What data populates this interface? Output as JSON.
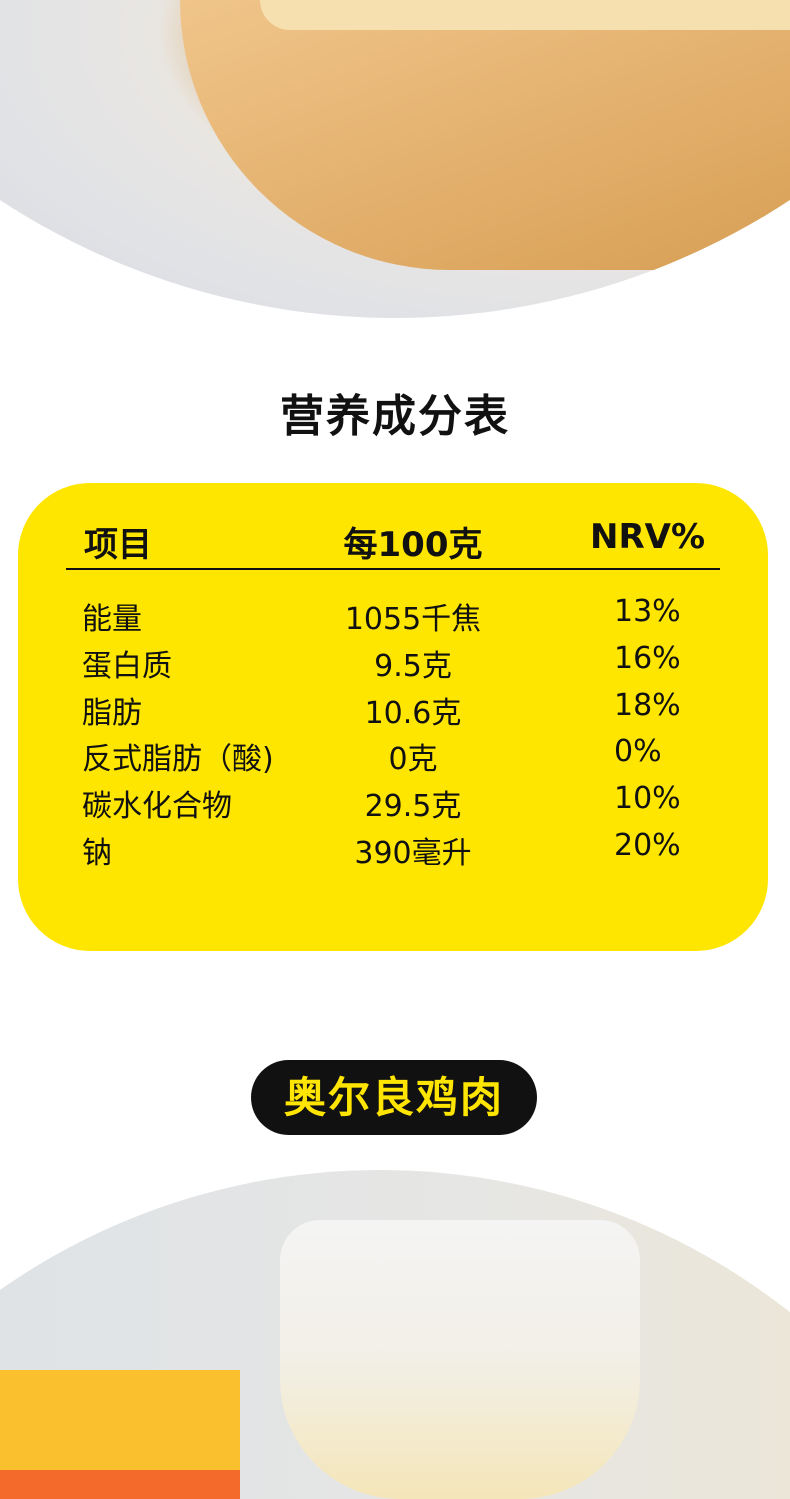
{
  "heading": "营养成分表",
  "table": {
    "headers": [
      "项目",
      "每100克",
      "NRV%"
    ],
    "rows": [
      [
        "能量",
        "1055千焦",
        "13%"
      ],
      [
        "蛋白质",
        "9.5克",
        "16%"
      ],
      [
        "脂肪",
        "10.6克",
        "18%"
      ],
      [
        "反式脂肪（酸)",
        "0克",
        "0%"
      ],
      [
        "碳水化合物",
        "29.5克",
        "10%"
      ],
      [
        "钠",
        "390毫升",
        "20%"
      ]
    ]
  },
  "badge": "奥尔良鸡肉",
  "colors": {
    "accent": "#FFE600",
    "badge_bg": "#111111"
  }
}
